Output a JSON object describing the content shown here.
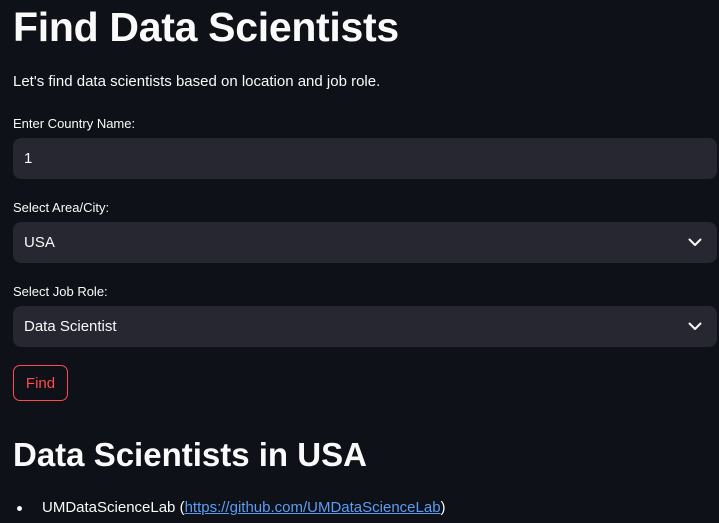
{
  "page": {
    "title": "Find Data Scientists",
    "subtitle": "Let's find data scientists based on location and job role."
  },
  "form": {
    "country_label": "Enter Country Name:",
    "country_value": "1",
    "area_label": "Select Area/City:",
    "area_value": "USA",
    "role_label": "Select Job Role:",
    "role_value": "Data Scientist",
    "find_label": "Find"
  },
  "results": {
    "heading": "Data Scientists in USA",
    "items": [
      {
        "name": "UMDataScienceLab",
        "open_paren": "(",
        "url": "https://github.com/UMDataScienceLab",
        "close_paren": ")"
      }
    ]
  },
  "colors": {
    "background": "#0e1117",
    "input_background": "#262730",
    "accent": "#ff4b4b",
    "link": "#5c9cf5"
  },
  "icons": {
    "select_chevron": "chevron-down-icon"
  }
}
